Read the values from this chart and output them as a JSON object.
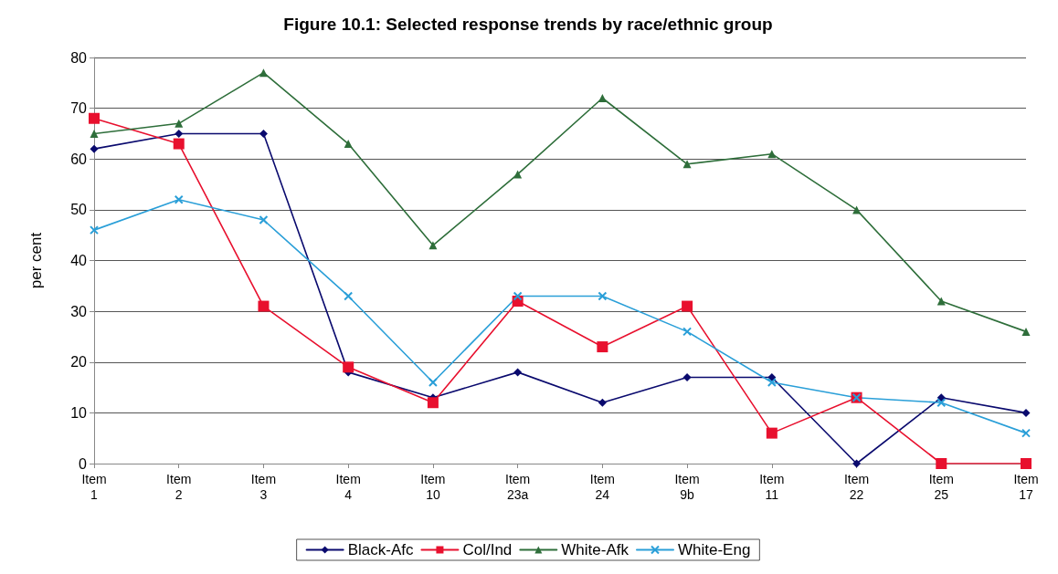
{
  "chart_data": {
    "type": "line",
    "title": "Figure 10.1: Selected response trends by race/ethnic group",
    "ylabel": "per cent",
    "categories": [
      "Item 1",
      "Item 2",
      "Item 3",
      "Item 4",
      "Item 10",
      "Item 23a",
      "Item 24",
      "Item 9b",
      "Item 11",
      "Item 22",
      "Item 25",
      "Item 17"
    ],
    "series": [
      {
        "name": "Black-Afc",
        "color": "#0a0a6e",
        "marker": "diamond",
        "values": [
          62,
          65,
          65,
          18,
          13,
          18,
          12,
          17,
          17,
          0,
          13,
          10
        ]
      },
      {
        "name": "Col/Ind",
        "color": "#e8102e",
        "marker": "square",
        "values": [
          68,
          63,
          31,
          19,
          12,
          32,
          23,
          31,
          6,
          13,
          0,
          0
        ]
      },
      {
        "name": "White-Afk",
        "color": "#2e6e3a",
        "marker": "triangle",
        "values": [
          65,
          67,
          77,
          63,
          43,
          57,
          72,
          59,
          61,
          50,
          32,
          26
        ]
      },
      {
        "name": "White-Eng",
        "color": "#2a9fd8",
        "marker": "cross",
        "values": [
          46,
          52,
          48,
          33,
          16,
          33,
          33,
          26,
          16,
          13,
          12,
          6
        ]
      }
    ],
    "ylim": [
      0,
      80
    ],
    "yticks": [
      0,
      10,
      20,
      30,
      40,
      50,
      60,
      70,
      80
    ],
    "grid": "y",
    "legend": "bottom"
  }
}
